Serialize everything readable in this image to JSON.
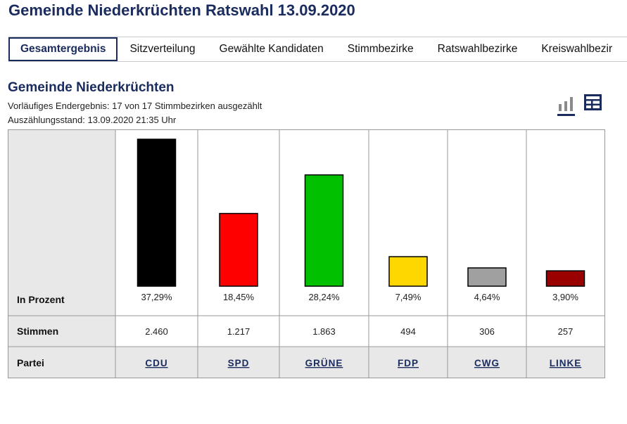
{
  "page_title": "Gemeinde Niederkrüchten Ratswahl 13.09.2020",
  "tabs": [
    {
      "label": "Gesamtergebnis",
      "active": true
    },
    {
      "label": "Sitzverteilung",
      "active": false
    },
    {
      "label": "Gewählte Kandidaten",
      "active": false
    },
    {
      "label": "Stimmbezirke",
      "active": false
    },
    {
      "label": "Ratswahlbezirke",
      "active": false
    },
    {
      "label": "Kreiswahlbezir",
      "active": false
    }
  ],
  "section": {
    "title": "Gemeinde Niederkrüchten",
    "status": "Vorläufiges Endergebnis: 17 von 17 Stimmbezirken ausgezählt",
    "timestamp": "Auszählungsstand: 13.09.2020 21:35 Uhr"
  },
  "view_icons": {
    "chart": "bar-chart-icon",
    "table": "table-icon"
  },
  "colors": {
    "accent": "#1a2b5e",
    "header_bg": "#e8e8e8"
  },
  "chart_data": {
    "type": "bar",
    "row_labels": {
      "percent": "In Prozent",
      "votes": "Stimmen",
      "party": "Partei"
    },
    "categories": [
      "CDU",
      "SPD",
      "GRÜNE",
      "FDP",
      "CWG",
      "LINKE"
    ],
    "values": [
      37.29,
      18.45,
      28.24,
      7.49,
      4.64,
      3.9
    ],
    "value_labels": [
      "37,29%",
      "18,45%",
      "28,24%",
      "7,49%",
      "4,64%",
      "3,90%"
    ],
    "votes": [
      "2.460",
      "1.217",
      "1.863",
      "494",
      "306",
      "257"
    ],
    "colors": [
      "#000000",
      "#ff0000",
      "#00c000",
      "#ffd700",
      "#a0a0a0",
      "#990000"
    ],
    "ylim": [
      0,
      37.29
    ],
    "grid": false
  }
}
